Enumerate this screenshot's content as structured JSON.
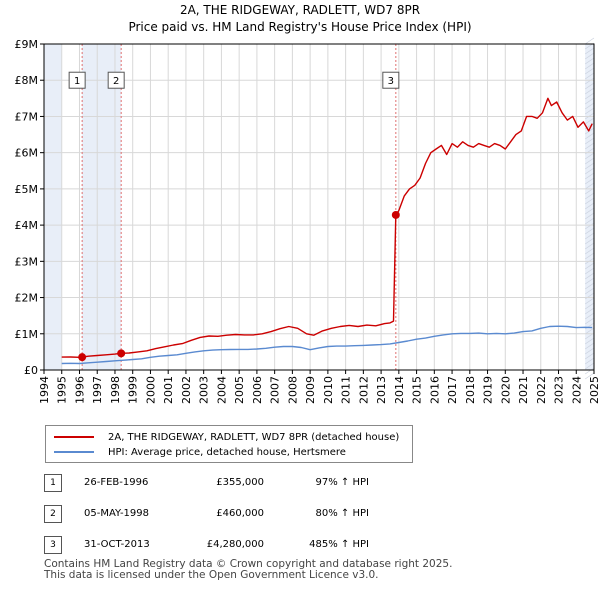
{
  "chart_data": {
    "type": "line",
    "title": "2A, THE RIDGEWAY, RADLETT, WD7 8PR",
    "subtitle": "Price paid vs. HM Land Registry's House Price Index (HPI)",
    "xlim": [
      1994,
      2025
    ],
    "ylim": [
      0,
      9000000
    ],
    "x_ticks": [
      "1994",
      "1995",
      "1996",
      "1997",
      "1998",
      "1999",
      "2000",
      "2001",
      "2002",
      "2003",
      "2004",
      "2005",
      "2006",
      "2007",
      "2008",
      "2009",
      "2010",
      "2011",
      "2012",
      "2013",
      "2014",
      "2015",
      "2016",
      "2017",
      "2018",
      "2019",
      "2020",
      "2021",
      "2022",
      "2023",
      "2024",
      "2025"
    ],
    "y_ticks": [
      {
        "value": 0,
        "label": "£0"
      },
      {
        "value": 1000000,
        "label": "£1M"
      },
      {
        "value": 2000000,
        "label": "£2M"
      },
      {
        "value": 3000000,
        "label": "£3M"
      },
      {
        "value": 4000000,
        "label": "£4M"
      },
      {
        "value": 5000000,
        "label": "£5M"
      },
      {
        "value": 6000000,
        "label": "£6M"
      },
      {
        "value": 7000000,
        "label": "£7M"
      },
      {
        "value": 8000000,
        "label": "£8M"
      },
      {
        "value": 9000000,
        "label": "£9M"
      }
    ],
    "grid": true,
    "shaded_ranges": [
      [
        1994,
        1995
      ],
      [
        1996.15,
        1998.35
      ],
      [
        2024.5,
        2025
      ]
    ],
    "series": [
      {
        "name": "2A, THE RIDGEWAY, RADLETT, WD7 8PR (detached house)",
        "color": "#cc0000",
        "x": [
          1995.0,
          1995.5,
          1996.0,
          1996.15,
          1996.5,
          1997.0,
          1997.5,
          1998.0,
          1998.35,
          1998.8,
          1999.3,
          1999.8,
          2000.3,
          2000.8,
          2001.3,
          2001.8,
          2002.3,
          2002.8,
          2003.3,
          2003.8,
          2004.3,
          2004.8,
          2005.3,
          2005.8,
          2006.3,
          2006.8,
          2007.3,
          2007.8,
          2008.3,
          2008.8,
          2009.2,
          2009.7,
          2010.2,
          2010.7,
          2011.2,
          2011.7,
          2012.2,
          2012.7,
          2013.2,
          2013.5,
          2013.7,
          2013.83,
          2014.0,
          2014.3,
          2014.6,
          2014.9,
          2015.2,
          2015.5,
          2015.8,
          2016.1,
          2016.4,
          2016.7,
          2017.0,
          2017.3,
          2017.6,
          2017.9,
          2018.2,
          2018.5,
          2018.8,
          2019.1,
          2019.4,
          2019.7,
          2020.0,
          2020.3,
          2020.6,
          2020.9,
          2021.2,
          2021.5,
          2021.8,
          2022.1,
          2022.4,
          2022.6,
          2022.9,
          2023.2,
          2023.5,
          2023.8,
          2024.1,
          2024.4,
          2024.7,
          2024.9
        ],
        "values": [
          355000,
          360000,
          350000,
          355000,
          380000,
          400000,
          420000,
          440000,
          460000,
          470000,
          500000,
          530000,
          590000,
          640000,
          690000,
          730000,
          820000,
          900000,
          940000,
          930000,
          960000,
          980000,
          970000,
          970000,
          1000000,
          1060000,
          1140000,
          1200000,
          1150000,
          1000000,
          960000,
          1080000,
          1150000,
          1200000,
          1230000,
          1200000,
          1240000,
          1220000,
          1280000,
          1300000,
          1350000,
          4280000,
          4400000,
          4800000,
          5000000,
          5100000,
          5300000,
          5700000,
          6000000,
          6100000,
          6200000,
          5950000,
          6250000,
          6150000,
          6300000,
          6200000,
          6150000,
          6250000,
          6200000,
          6150000,
          6250000,
          6200000,
          6100000,
          6300000,
          6500000,
          6600000,
          7000000,
          7000000,
          6950000,
          7100000,
          7500000,
          7300000,
          7400000,
          7100000,
          6900000,
          7000000,
          6700000,
          6850000,
          6600000,
          6800000
        ]
      },
      {
        "name": "HPI: Average price, detached house, Hertsmere",
        "color": "#5a8ad0",
        "x": [
          1995.0,
          1995.5,
          1996.0,
          1996.5,
          1997.0,
          1997.5,
          1998.0,
          1998.5,
          1999.0,
          1999.5,
          2000.0,
          2000.5,
          2001.0,
          2001.5,
          2002.0,
          2002.5,
          2003.0,
          2003.5,
          2004.0,
          2004.5,
          2005.0,
          2005.5,
          2006.0,
          2006.5,
          2007.0,
          2007.5,
          2008.0,
          2008.5,
          2009.0,
          2009.5,
          2010.0,
          2010.5,
          2011.0,
          2011.5,
          2012.0,
          2012.5,
          2013.0,
          2013.5,
          2014.0,
          2014.5,
          2015.0,
          2015.5,
          2016.0,
          2016.5,
          2017.0,
          2017.5,
          2018.0,
          2018.5,
          2019.0,
          2019.5,
          2020.0,
          2020.5,
          2021.0,
          2021.5,
          2022.0,
          2022.5,
          2023.0,
          2023.5,
          2024.0,
          2024.5,
          2024.9
        ],
        "values": [
          180000,
          185000,
          180000,
          200000,
          215000,
          235000,
          255000,
          270000,
          290000,
          310000,
          350000,
          380000,
          400000,
          420000,
          460000,
          500000,
          530000,
          550000,
          560000,
          565000,
          570000,
          570000,
          580000,
          600000,
          630000,
          650000,
          650000,
          620000,
          560000,
          610000,
          650000,
          660000,
          660000,
          670000,
          680000,
          690000,
          700000,
          720000,
          760000,
          800000,
          850000,
          880000,
          930000,
          970000,
          1000000,
          1010000,
          1010000,
          1020000,
          1000000,
          1010000,
          1000000,
          1020000,
          1060000,
          1080000,
          1150000,
          1200000,
          1210000,
          1200000,
          1170000,
          1180000,
          1170000
        ]
      }
    ],
    "sales": [
      {
        "id": "1",
        "date": "26-FEB-1996",
        "x": 1996.15,
        "price": 355000,
        "price_label": "£355,000",
        "hpi": "97% ↑ HPI"
      },
      {
        "id": "2",
        "date": "05-MAY-1998",
        "x": 1998.35,
        "price": 460000,
        "price_label": "£460,000",
        "hpi": "80% ↑ HPI"
      },
      {
        "id": "3",
        "date": "31-OCT-2013",
        "x": 2013.83,
        "price": 4280000,
        "price_label": "£4,280,000",
        "hpi": "485% ↑ HPI"
      }
    ],
    "marker_label_value": 8000000
  },
  "legend": {
    "property_label": "2A, THE RIDGEWAY, RADLETT, WD7 8PR (detached house)",
    "hpi_label": "HPI: Average price, detached house, Hertsmere"
  },
  "footer": {
    "line1": "Contains HM Land Registry data © Crown copyright and database right 2025.",
    "line2": "This data is licensed under the Open Government Licence v3.0."
  },
  "colors": {
    "property": "#cc0000",
    "hpi": "#5a8ad0",
    "grid": "#d8d8d8",
    "shade": "#e8eef8"
  }
}
